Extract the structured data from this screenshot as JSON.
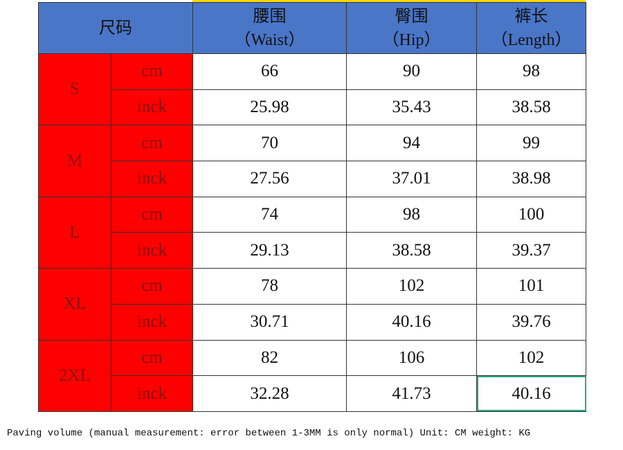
{
  "header": {
    "size": "尺码",
    "columns": [
      {
        "name": "腰围",
        "sub": "（Waist）"
      },
      {
        "name": "臀围",
        "sub": "（Hip）"
      },
      {
        "name": "裤长",
        "sub": "（Length）"
      }
    ]
  },
  "rows": [
    {
      "size": "S",
      "units": [
        {
          "unit": "cm",
          "values": [
            "66",
            "90",
            "98"
          ]
        },
        {
          "unit": "inck",
          "values": [
            "25.98",
            "35.43",
            "38.58"
          ]
        }
      ]
    },
    {
      "size": "M",
      "units": [
        {
          "unit": "cm",
          "values": [
            "70",
            "94",
            "99"
          ]
        },
        {
          "unit": "inck",
          "values": [
            "27.56",
            "37.01",
            "38.98"
          ]
        }
      ]
    },
    {
      "size": "L",
      "units": [
        {
          "unit": "cm",
          "values": [
            "74",
            "98",
            "100"
          ]
        },
        {
          "unit": "inck",
          "values": [
            "29.13",
            "38.58",
            "39.37"
          ]
        }
      ]
    },
    {
      "size": "XL",
      "units": [
        {
          "unit": "cm",
          "values": [
            "78",
            "102",
            "101"
          ]
        },
        {
          "unit": "inck",
          "values": [
            "30.71",
            "40.16",
            "39.76"
          ]
        }
      ]
    },
    {
      "size": "2XL",
      "units": [
        {
          "unit": "cm",
          "values": [
            "82",
            "106",
            "102"
          ]
        },
        {
          "unit": "inck",
          "values": [
            "32.28",
            "41.73",
            "40.16"
          ]
        }
      ]
    }
  ],
  "footer": "Paving volume (manual measurement: error between 1-3MM is only normal) Unit: CM weight: KG"
}
